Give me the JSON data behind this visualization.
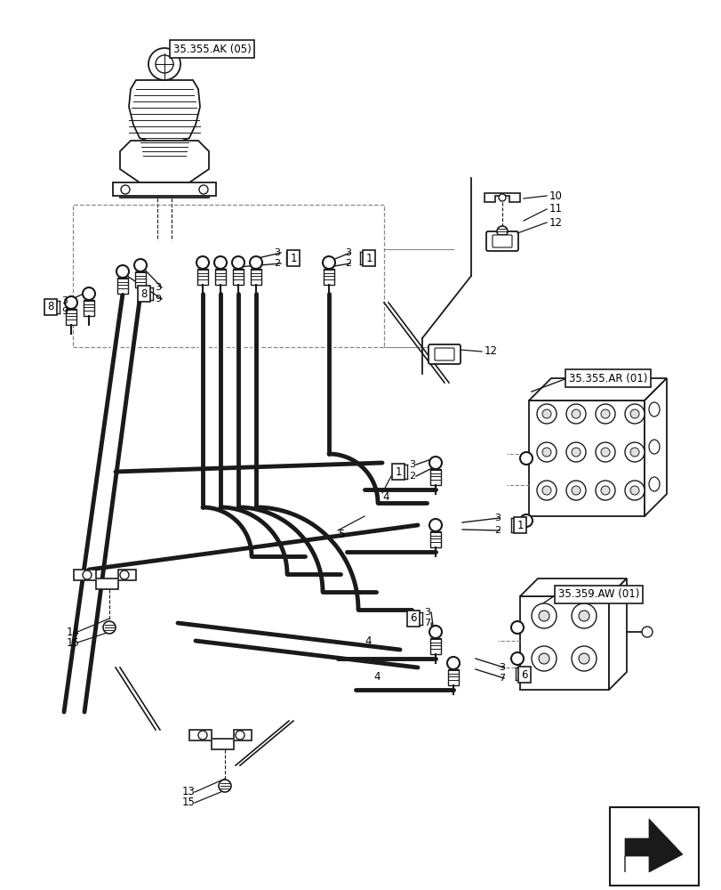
{
  "bg_color": "#ffffff",
  "line_color": "#1a1a1a",
  "fig_width": 8.12,
  "fig_height": 10.0,
  "dpi": 100,
  "ref_labels": {
    "ak05": "35.355.AK (05)",
    "ar01": "35.355.AR (01)",
    "aw01": "35.359.AW (01)"
  }
}
